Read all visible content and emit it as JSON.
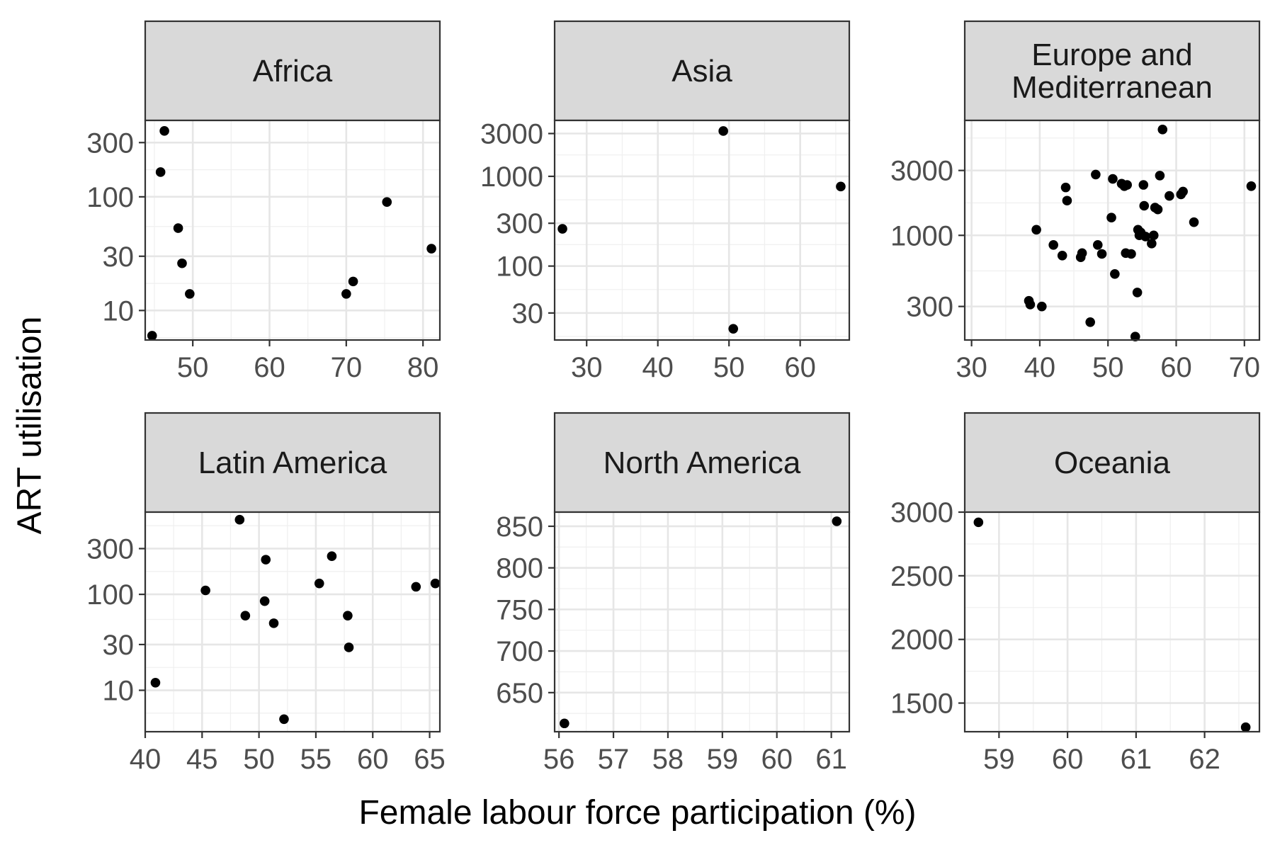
{
  "chart_data": {
    "type": "scatter",
    "facet": "wrap",
    "xlabel": "Female labour force participation (%)",
    "ylabel": "ART utilisation",
    "grid": true,
    "legend": "none",
    "panels": [
      {
        "title": "Africa",
        "yscale": "log",
        "xlim": [
          43.8,
          82.2
        ],
        "ylim": [
          5.5,
          470
        ],
        "xticks": [
          50,
          60,
          70,
          80
        ],
        "xtick_labels": [
          "50",
          "60",
          "70",
          "80"
        ],
        "yticks": [
          10,
          30,
          100,
          300
        ],
        "ytick_labels": [
          "10",
          "30",
          "100",
          "300"
        ],
        "x": [
          44.7,
          45.8,
          46.3,
          48.1,
          48.6,
          49.6,
          70.0,
          70.9,
          75.3,
          81.1
        ],
        "y": [
          6,
          165,
          380,
          53,
          26,
          14,
          14,
          18,
          90,
          35
        ]
      },
      {
        "title": "Asia",
        "yscale": "log",
        "xlim": [
          25.5,
          66.9
        ],
        "ylim": [
          15,
          4200
        ],
        "xticks": [
          30,
          40,
          50,
          60
        ],
        "xtick_labels": [
          "30",
          "40",
          "50",
          "60"
        ],
        "yticks": [
          30,
          100,
          300,
          1000,
          3000
        ],
        "ytick_labels": [
          "30",
          "100",
          "300",
          "1000",
          "3000"
        ],
        "x": [
          26.6,
          49.2,
          50.6,
          65.7
        ],
        "y": [
          260,
          3200,
          20,
          770
        ]
      },
      {
        "title": "Europe and\nMediterranean",
        "yscale": "log",
        "xlim": [
          29.0,
          72.2
        ],
        "ylim": [
          170,
          7000
        ],
        "xticks": [
          30,
          40,
          50,
          60,
          70
        ],
        "xtick_labels": [
          "30",
          "40",
          "50",
          "60",
          "70"
        ],
        "yticks": [
          300,
          1000,
          3000
        ],
        "ytick_labels": [
          "300",
          "1000",
          "3000"
        ],
        "x": [
          38.4,
          38.6,
          39.5,
          40.3,
          42.0,
          43.3,
          43.8,
          44.0,
          46.0,
          46.2,
          47.4,
          48.2,
          48.5,
          49.1,
          50.5,
          50.7,
          51.0,
          52.0,
          52.4,
          52.6,
          52.8,
          53.4,
          54.0,
          54.3,
          54.4,
          54.6,
          54.8,
          55.2,
          55.3,
          55.5,
          56.4,
          56.7,
          56.9,
          57.3,
          57.6,
          58.0,
          59.0,
          60.7,
          61.0,
          62.6,
          71.0
        ],
        "y": [
          330,
          310,
          1100,
          300,
          850,
          710,
          2250,
          1800,
          690,
          740,
          230,
          2800,
          850,
          730,
          1350,
          2600,
          520,
          2400,
          2300,
          740,
          2350,
          730,
          180,
          380,
          1100,
          1000,
          1050,
          2350,
          1650,
          980,
          870,
          1000,
          1600,
          1550,
          2750,
          6000,
          1950,
          2000,
          2100,
          1250,
          2300
        ]
      },
      {
        "title": "Latin America",
        "yscale": "log",
        "xlim": [
          40.0,
          65.9
        ],
        "ylim": [
          3.7,
          720
        ],
        "xticks": [
          40,
          45,
          50,
          55,
          60,
          65
        ],
        "xtick_labels": [
          "40",
          "45",
          "50",
          "55",
          "60",
          "65"
        ],
        "yticks": [
          10,
          30,
          100,
          300
        ],
        "ytick_labels": [
          "10",
          "30",
          "100",
          "300"
        ],
        "x": [
          40.9,
          45.3,
          48.3,
          48.8,
          50.5,
          50.6,
          51.3,
          52.2,
          55.3,
          56.4,
          57.8,
          57.9,
          63.8,
          65.5
        ],
        "y": [
          12,
          110,
          600,
          60,
          85,
          230,
          50,
          5,
          130,
          250,
          60,
          28,
          120,
          130
        ]
      },
      {
        "title": "North America",
        "yscale": "linear",
        "xlim": [
          55.92,
          61.33
        ],
        "ylim": [
          603,
          867
        ],
        "xticks": [
          56,
          57,
          58,
          59,
          60,
          61
        ],
        "xtick_labels": [
          "56",
          "57",
          "58",
          "59",
          "60",
          "61"
        ],
        "yticks": [
          650,
          700,
          750,
          800,
          850
        ],
        "ytick_labels": [
          "650",
          "700",
          "750",
          "800",
          "850"
        ],
        "x": [
          56.1,
          61.1
        ],
        "y": [
          613,
          856
        ]
      },
      {
        "title": "Oceania",
        "yscale": "linear",
        "xlim": [
          58.5,
          62.8
        ],
        "ylim": [
          1275,
          3000
        ],
        "xticks": [
          59,
          60,
          61,
          62
        ],
        "xtick_labels": [
          "59",
          "60",
          "61",
          "62"
        ],
        "yticks": [
          1500,
          2000,
          2500,
          3000
        ],
        "ytick_labels": [
          "1500",
          "2000",
          "2500",
          "3000"
        ],
        "x": [
          58.7,
          62.6
        ],
        "y": [
          2920,
          1310
        ]
      }
    ]
  }
}
